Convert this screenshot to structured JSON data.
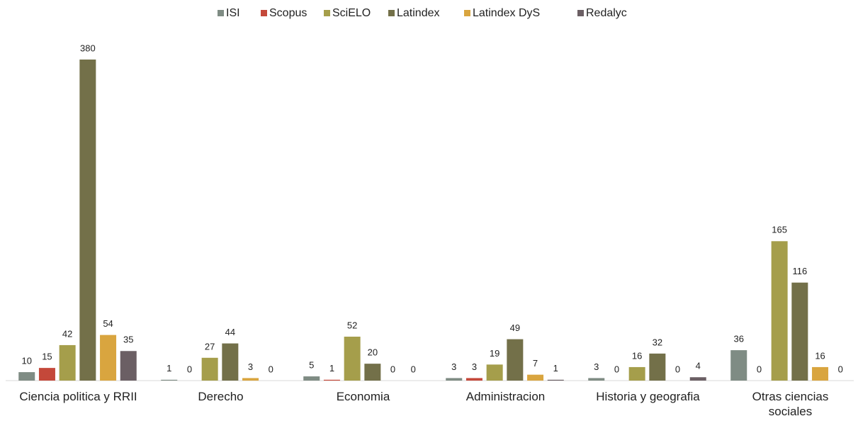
{
  "chart_data": {
    "type": "bar",
    "categories": [
      "Ciencia politica y RRII",
      "Derecho",
      "Economia",
      "Administracion",
      "Historia y geografia",
      "Otras ciencias\nsociales"
    ],
    "series": [
      {
        "name": "ISI",
        "color": "#7f8c84",
        "values": [
          10,
          1,
          5,
          3,
          3,
          36
        ]
      },
      {
        "name": "Scopus",
        "color": "#c4483a",
        "values": [
          15,
          0,
          1,
          3,
          0,
          0
        ]
      },
      {
        "name": "SciELO",
        "color": "#a59e4b",
        "values": [
          42,
          27,
          52,
          19,
          16,
          165
        ]
      },
      {
        "name": "Latindex",
        "color": "#737049",
        "values": [
          380,
          44,
          20,
          49,
          32,
          116
        ]
      },
      {
        "name": "Latindex DyS",
        "color": "#d9a53f",
        "values": [
          54,
          3,
          0,
          7,
          0,
          16
        ]
      },
      {
        "name": "Redalyc",
        "color": "#6b5f64",
        "values": [
          35,
          0,
          0,
          1,
          4,
          0
        ]
      }
    ],
    "legend": "top"
  }
}
